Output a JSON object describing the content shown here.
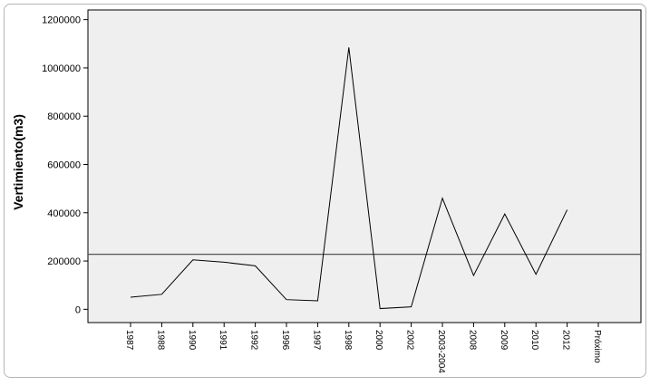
{
  "chart_data": {
    "type": "line",
    "title": "",
    "xlabel": "",
    "ylabel": "Vertimiento(m3)",
    "categories": [
      "1987",
      "1988",
      "1990",
      "1991",
      "1992",
      "1996",
      "1997",
      "1998",
      "2000",
      "2002",
      "2003-2004",
      "2008",
      "2009",
      "2010",
      "2012",
      "Próximo"
    ],
    "series": [
      {
        "values": [
          50000,
          62000,
          205000,
          195000,
          180000,
          40000,
          35000,
          1085000,
          3000,
          10000,
          460000,
          140000,
          395000,
          145000,
          412000,
          null
        ]
      }
    ],
    "reference_line": {
      "value": 228000
    },
    "yticks": [
      0,
      200000,
      400000,
      600000,
      800000,
      1000000,
      1200000
    ],
    "ylim": [
      -55000,
      1240000
    ],
    "grid": false,
    "legend": "none",
    "colors": {
      "plot_background": "#efefef",
      "line": "#000000",
      "reference_line": "#555555",
      "frame": "#000000",
      "outer_border": "#b5b5b5"
    }
  }
}
